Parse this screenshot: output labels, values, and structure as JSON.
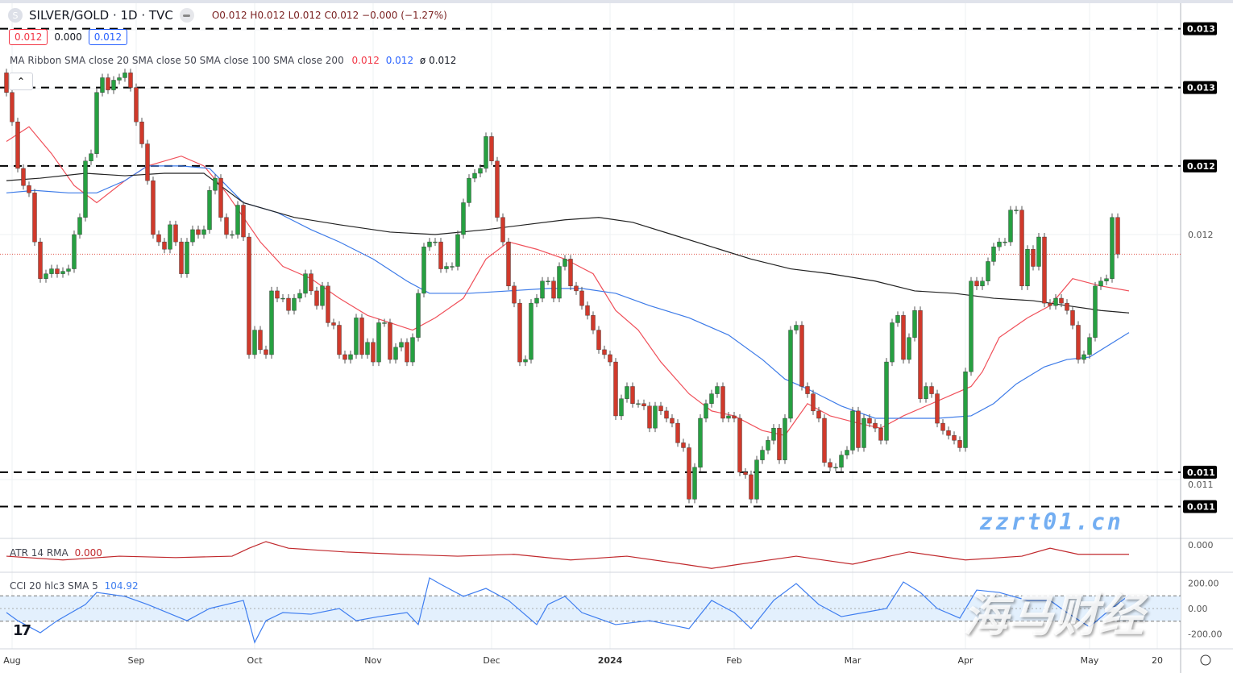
{
  "header": {
    "symbol_icon": "S",
    "title": "SILVER/GOLD · 1D · TVC",
    "ohlc": "O0.012 H0.012 L0.012 C0.012 −0.000 (−1.27%)"
  },
  "value_boxes": [
    {
      "text": "0.012",
      "color": "#f23645"
    },
    {
      "text": "0.000",
      "color": "#131722"
    },
    {
      "text": "0.012",
      "color": "#2962ff"
    }
  ],
  "ma_legend": {
    "label": "MA Ribbon SMA close 20 SMA close 50 SMA close 100 SMA close 200",
    "v20": "0.012",
    "v50": "0.012",
    "v200": "ø 0.012"
  },
  "collapse_icon": "chevron-up-icon",
  "atr_label": {
    "name": "ATR 14 RMA",
    "value": "0.000"
  },
  "cci_label": {
    "name": "CCI 20 hlc3 SMA 5",
    "value": "104.92"
  },
  "watermark": {
    "cn": "海马财经",
    "url": "zzrt01.cn"
  },
  "colors": {
    "up": "#26a041",
    "down": "#d0392b",
    "ma20": "#f0505a",
    "ma50": "#3d7be8",
    "ma200": "#222222",
    "atr": "#c0282c",
    "cci": "#3f7ef0",
    "cci_band": "#e3f0fd"
  },
  "chart_data": {
    "type": "candlestick",
    "price_axis": {
      "ticks": [
        {
          "value": 0.012,
          "label": "0.012"
        },
        {
          "value": 0.011,
          "label": "0.011"
        }
      ]
    },
    "level_lines": [
      {
        "value": 0.01284,
        "label": "0.013"
      },
      {
        "value": 0.0126,
        "label": "0.013"
      },
      {
        "value": 0.01228,
        "label": "0.012"
      },
      {
        "value": 0.01103,
        "label": "0.011"
      },
      {
        "value": 0.01089,
        "label": "0.011"
      }
    ],
    "last_price": 0.01192,
    "closes": [
      0.01258,
      0.01246,
      0.01227,
      0.0122,
      0.01217,
      0.01197,
      0.01182,
      0.01184,
      0.01186,
      0.01184,
      0.01185,
      0.01186,
      0.012,
      0.01207,
      0.0123,
      0.01233,
      0.01258,
      0.01264,
      0.01259,
      0.01263,
      0.01264,
      0.01266,
      0.0126,
      0.01246,
      0.01237,
      0.01222,
      0.012,
      0.01197,
      0.01194,
      0.01204,
      0.01197,
      0.01184,
      0.01197,
      0.01202,
      0.012,
      0.01202,
      0.01218,
      0.01223,
      0.01207,
      0.012,
      0.012,
      0.01212,
      0.01199,
      0.01151,
      0.01161,
      0.01153,
      0.01151,
      0.01177,
      0.01174,
      0.01174,
      0.01169,
      0.01174,
      0.01176,
      0.01184,
      0.01177,
      0.01171,
      0.01179,
      0.01164,
      0.01163,
      0.01151,
      0.01149,
      0.01151,
      0.01166,
      0.01151,
      0.01156,
      0.01148,
      0.01164,
      0.01164,
      0.01149,
      0.01154,
      0.01156,
      0.01148,
      0.01158,
      0.01176,
      0.01195,
      0.01197,
      0.01197,
      0.01186,
      0.01187,
      0.01187,
      0.012,
      0.01213,
      0.01223,
      0.01225,
      0.01227,
      0.0124,
      0.0123,
      0.01207,
      0.01197,
      0.01179,
      0.01172,
      0.01148,
      0.01149,
      0.01172,
      0.01174,
      0.01181,
      0.01181,
      0.01174,
      0.01187,
      0.0119,
      0.01179,
      0.01177,
      0.01171,
      0.01167,
      0.01161,
      0.01153,
      0.01151,
      0.01148,
      0.01126,
      0.01133,
      0.01138,
      0.01131,
      0.01131,
      0.0113,
      0.01121,
      0.0113,
      0.01128,
      0.01125,
      0.01123,
      0.01115,
      0.01113,
      0.01092,
      0.01105,
      0.01125,
      0.01131,
      0.01135,
      0.01138,
      0.01125,
      0.01126,
      0.01125,
      0.01103,
      0.01102,
      0.01092,
      0.01108,
      0.01112,
      0.01116,
      0.01121,
      0.01108,
      0.01125,
      0.01161,
      0.01163,
      0.01138,
      0.01135,
      0.01128,
      0.01125,
      0.01107,
      0.01105,
      0.01105,
      0.0111,
      0.01112,
      0.01128,
      0.01113,
      0.01125,
      0.01123,
      0.01121,
      0.01116,
      0.01148,
      0.01164,
      0.01167,
      0.01149,
      0.01158,
      0.01169,
      0.01133,
      0.01138,
      0.01135,
      0.01123,
      0.0112,
      0.01118,
      0.01116,
      0.01113,
      0.01144,
      0.01181,
      0.01179,
      0.01181,
      0.01189,
      0.01195,
      0.01197,
      0.01197,
      0.0121,
      0.0121,
      0.01179,
      0.01194,
      0.01187,
      0.01199,
      0.01172,
      0.01171,
      0.01174,
      0.01172,
      0.01169,
      0.01163,
      0.01149,
      0.01151,
      0.01158,
      0.01179,
      0.01181,
      0.01182,
      0.01207,
      0.01192
    ],
    "ma": [
      {
        "period": 20,
        "bars": [
          0,
          4,
          8,
          12,
          16,
          21,
          25,
          31,
          35,
          39,
          42,
          45,
          49,
          54,
          59,
          64,
          68,
          72,
          76,
          81,
          85,
          89,
          94,
          99,
          104,
          108,
          112,
          116,
          121,
          125,
          129,
          134,
          138,
          142,
          146,
          151,
          155,
          159,
          164,
          168,
          171,
          173,
          176,
          181,
          185,
          189,
          194,
          199
        ],
        "values": [
          0.01238,
          0.01244,
          0.01233,
          0.0122,
          0.01213,
          0.01222,
          0.01228,
          0.01232,
          0.01228,
          0.01217,
          0.01207,
          0.01197,
          0.01187,
          0.01182,
          0.01174,
          0.01167,
          0.01164,
          0.01161,
          0.01166,
          0.01174,
          0.0119,
          0.01197,
          0.01194,
          0.0119,
          0.01184,
          0.01169,
          0.01161,
          0.01148,
          0.01135,
          0.01128,
          0.01126,
          0.0112,
          0.01118,
          0.01131,
          0.01126,
          0.01123,
          0.01121,
          0.01126,
          0.01131,
          0.01135,
          0.01138,
          0.01144,
          0.01158,
          0.01166,
          0.01171,
          0.01182,
          0.01179,
          0.01177
        ]
      },
      {
        "period": 50,
        "bars": [
          0,
          5,
          11,
          16,
          21,
          25,
          31,
          36,
          42,
          48,
          54,
          59,
          65,
          71,
          75,
          82,
          89,
          96,
          102,
          108,
          114,
          121,
          128,
          134,
          138,
          142,
          148,
          154,
          159,
          165,
          171,
          175,
          179,
          184,
          188,
          192,
          199
        ],
        "values": [
          0.01217,
          0.01218,
          0.01217,
          0.01217,
          0.01222,
          0.01228,
          0.01228,
          0.01227,
          0.01213,
          0.01209,
          0.01202,
          0.01197,
          0.0119,
          0.01181,
          0.01176,
          0.01176,
          0.01177,
          0.01178,
          0.01178,
          0.01176,
          0.01171,
          0.01166,
          0.01159,
          0.01149,
          0.01141,
          0.01137,
          0.0113,
          0.01125,
          0.01125,
          0.01125,
          0.01126,
          0.01131,
          0.01139,
          0.01146,
          0.01149,
          0.0115,
          0.0116
        ]
      },
      {
        "period": 200,
        "bars": [
          0,
          6,
          14,
          21,
          28,
          35,
          42,
          51,
          59,
          68,
          76,
          85,
          92,
          99,
          105,
          111,
          118,
          125,
          132,
          139,
          146,
          154,
          161,
          168,
          175,
          182,
          188,
          194,
          199
        ],
        "values": [
          0.01222,
          0.01223,
          0.01225,
          0.01224,
          0.01225,
          0.01225,
          0.01213,
          0.01207,
          0.01204,
          0.01201,
          0.012,
          0.01202,
          0.01204,
          0.01206,
          0.01207,
          0.01205,
          0.012,
          0.01195,
          0.0119,
          0.01186,
          0.01184,
          0.01181,
          0.01177,
          0.01176,
          0.01174,
          0.01173,
          0.01171,
          0.01169,
          0.01168
        ]
      }
    ],
    "atr": {
      "axis_label": "0.000",
      "bars": [
        0,
        10,
        20,
        30,
        40,
        43,
        46,
        50,
        60,
        70,
        80,
        90,
        100,
        110,
        120,
        125,
        130,
        140,
        150,
        160,
        170,
        180,
        185,
        190,
        199
      ],
      "values": [
        0.000129,
        0.000121,
        0.000129,
        0.000126,
        0.000129,
        0.000146,
        0.00016,
        0.000146,
        0.000138,
        0.000133,
        0.000129,
        0.000133,
        0.000121,
        0.000129,
        0.000112,
        0.000103,
        0.000112,
        0.000129,
        0.000112,
        0.000138,
        0.000121,
        0.000129,
        0.000146,
        0.000133,
        0.000133
      ]
    },
    "cci": {
      "ticks": [
        {
          "value": 200,
          "label": "200.00"
        },
        {
          "value": 0,
          "label": "0.00"
        },
        {
          "value": -200,
          "label": "-200.00"
        }
      ],
      "band": [
        -100,
        100
      ],
      "bars": [
        0,
        2,
        6,
        9,
        14,
        16,
        21,
        25,
        32,
        36,
        42,
        44,
        46,
        49,
        54,
        59,
        62,
        66,
        71,
        73,
        75,
        77,
        81,
        85,
        89,
        94,
        96,
        99,
        102,
        108,
        114,
        121,
        125,
        129,
        132,
        136,
        140,
        144,
        148,
        152,
        156,
        159,
        162,
        165,
        169,
        172,
        176,
        181,
        185,
        188,
        192,
        195,
        199
      ],
      "values": [
        -32,
        -96,
        -191,
        -96,
        32,
        127,
        96,
        32,
        -96,
        0,
        64,
        -268,
        -96,
        -32,
        -45,
        0,
        -96,
        -64,
        -32,
        -127,
        242,
        191,
        96,
        159,
        64,
        -127,
        32,
        96,
        -32,
        -127,
        -96,
        -159,
        64,
        -32,
        -159,
        64,
        197,
        32,
        -64,
        -32,
        0,
        210,
        127,
        0,
        -76,
        146,
        127,
        64,
        64,
        -32,
        -146,
        -32,
        105
      ]
    },
    "time_axis": [
      {
        "bar": 1,
        "label": "Aug"
      },
      {
        "bar": 23,
        "label": "Sep"
      },
      {
        "bar": 44,
        "label": "Oct"
      },
      {
        "bar": 65,
        "label": "Nov"
      },
      {
        "bar": 86,
        "label": "Dec"
      },
      {
        "bar": 107,
        "label": "2024",
        "bold": true
      },
      {
        "bar": 129,
        "label": "Feb"
      },
      {
        "bar": 150,
        "label": "Mar"
      },
      {
        "bar": 170,
        "label": "Apr"
      },
      {
        "bar": 192,
        "label": "May"
      },
      {
        "bar": 204,
        "label": "20"
      }
    ]
  }
}
